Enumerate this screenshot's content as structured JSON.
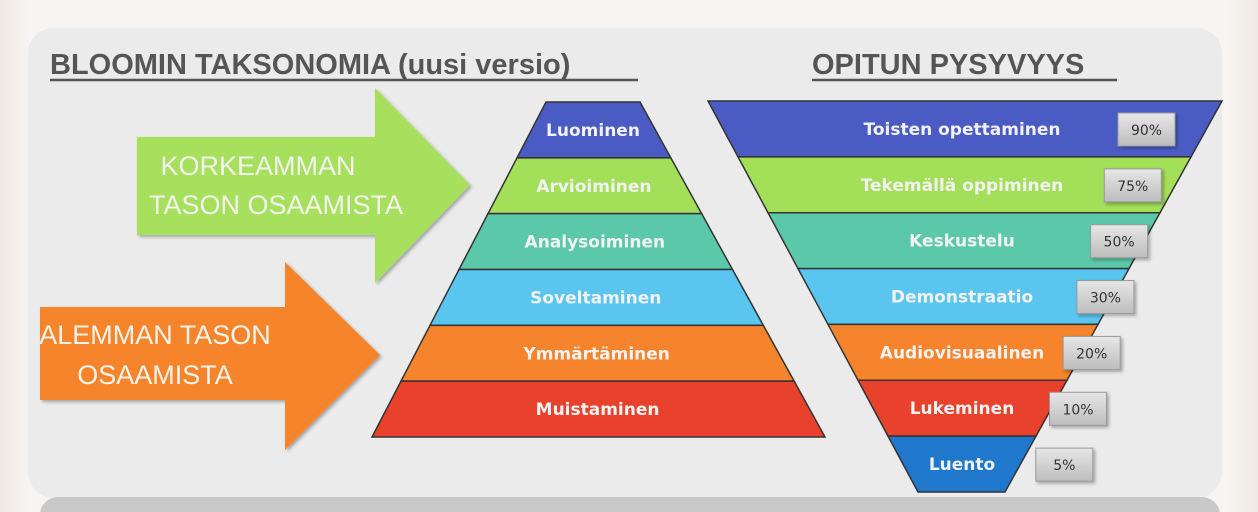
{
  "left": {
    "title": "BLOOMIN TAKSONOMIA (uusi versio)",
    "arrow_high": {
      "lines": [
        "KORKEAMMAN",
        "TASON OSAAMISTA"
      ],
      "color": "#a6e05c"
    },
    "arrow_low": {
      "lines": [
        "ALEMMAN TASON",
        "OSAAMISTA"
      ],
      "color": "#f5842c"
    },
    "pyramid_levels": [
      {
        "label": "Luominen",
        "color": "#4a5cc4"
      },
      {
        "label": "Arvioiminen",
        "color": "#a3df58"
      },
      {
        "label": "Analysoiminen",
        "color": "#5bc9a9"
      },
      {
        "label": "Soveltaminen",
        "color": "#5ac5ef"
      },
      {
        "label": "Ymmärtäminen",
        "color": "#f5842c"
      },
      {
        "label": "Muistaminen",
        "color": "#e8412c"
      }
    ]
  },
  "right": {
    "title": "OPITUN PYSYVYYS",
    "funnel_levels": [
      {
        "label": "Toisten opettaminen",
        "percent": "90%",
        "color": "#4a5cc4"
      },
      {
        "label": "Tekemällä oppiminen",
        "percent": "75%",
        "color": "#a3df58"
      },
      {
        "label": "Keskustelu",
        "percent": "50%",
        "color": "#5bc9a9"
      },
      {
        "label": "Demonstraatio",
        "percent": "30%",
        "color": "#5ac5ef"
      },
      {
        "label": "Audiovisuaalinen",
        "percent": "20%",
        "color": "#f5842c"
      },
      {
        "label": "Lukeminen",
        "percent": "10%",
        "color": "#e8412c"
      },
      {
        "label": "Luento",
        "percent": "5%",
        "color": "#1f78cc"
      }
    ]
  }
}
